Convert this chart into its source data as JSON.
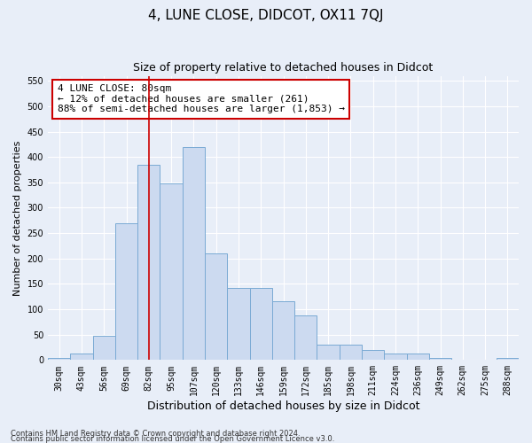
{
  "title": "4, LUNE CLOSE, DIDCOT, OX11 7QJ",
  "subtitle": "Size of property relative to detached houses in Didcot",
  "xlabel": "Distribution of detached houses by size in Didcot",
  "ylabel": "Number of detached properties",
  "categories": [
    "30sqm",
    "43sqm",
    "56sqm",
    "69sqm",
    "82sqm",
    "95sqm",
    "107sqm",
    "120sqm",
    "133sqm",
    "146sqm",
    "159sqm",
    "172sqm",
    "185sqm",
    "198sqm",
    "211sqm",
    "224sqm",
    "236sqm",
    "249sqm",
    "262sqm",
    "275sqm",
    "288sqm"
  ],
  "values": [
    4,
    12,
    48,
    270,
    385,
    348,
    420,
    210,
    142,
    142,
    115,
    88,
    30,
    30,
    20,
    12,
    12,
    4,
    0,
    0,
    4
  ],
  "bar_color": "#ccdaf0",
  "bar_edge_color": "#7aaad4",
  "vline_x": 4,
  "vline_color": "#cc0000",
  "annotation_text": "4 LUNE CLOSE: 80sqm\n← 12% of detached houses are smaller (261)\n88% of semi-detached houses are larger (1,853) →",
  "annotation_box_color": "white",
  "annotation_box_edge_color": "#cc0000",
  "ylim": [
    0,
    560
  ],
  "yticks": [
    0,
    50,
    100,
    150,
    200,
    250,
    300,
    350,
    400,
    450,
    500,
    550
  ],
  "footnote1": "Contains HM Land Registry data © Crown copyright and database right 2024.",
  "footnote2": "Contains public sector information licensed under the Open Government Licence v3.0.",
  "bg_color": "#e8eef8",
  "plot_bg_color": "#e8eef8",
  "title_fontsize": 11,
  "subtitle_fontsize": 9,
  "xlabel_fontsize": 9,
  "ylabel_fontsize": 8,
  "footnote_fontsize": 6,
  "tick_fontsize": 7,
  "annotation_fontsize": 8
}
